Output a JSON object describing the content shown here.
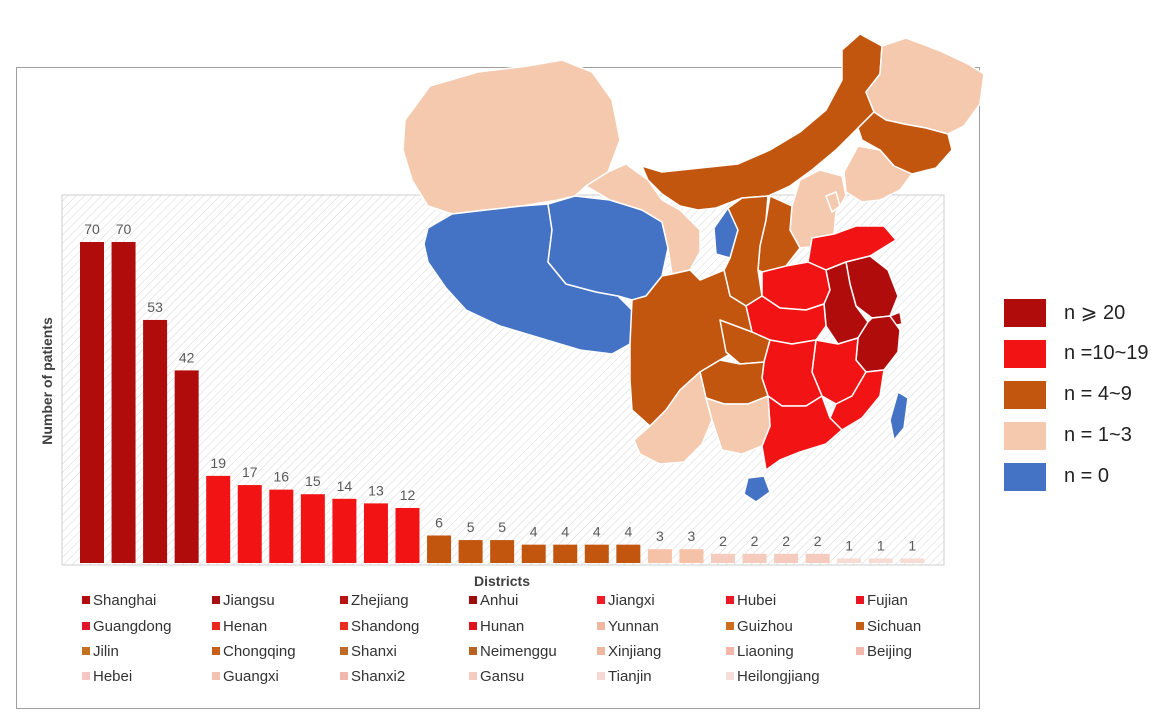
{
  "chart_data": {
    "type": "bar",
    "xlabel": "Districts",
    "ylabel": "Number of patients",
    "ylim": [
      0,
      80
    ],
    "grid": false,
    "categories": [
      "Shanghai",
      "Jiangsu",
      "Zhejiang",
      "Anhui",
      "Jiangxi",
      "Hubei",
      "Fujian",
      "Guangdong",
      "Henan",
      "Shandong",
      "Hunan",
      "Yunnan",
      "Guizhou",
      "Sichuan",
      "Jilin",
      "Chongqing",
      "Shanxi",
      "Neimenggu",
      "Xinjiang",
      "Liaoning",
      "Beijing",
      "Hebei",
      "Guangxi",
      "Shanxi2",
      "Gansu",
      "Tianjin",
      "Heilongjiang"
    ],
    "values": [
      70,
      70,
      53,
      42,
      19,
      17,
      16,
      15,
      14,
      13,
      12,
      6,
      5,
      5,
      4,
      4,
      4,
      4,
      3,
      3,
      2,
      2,
      2,
      2,
      1,
      1,
      1
    ],
    "data_labels": [
      "70",
      "70",
      "53",
      "42",
      "19",
      "17",
      "16",
      "15",
      "14",
      "13",
      "12",
      "6",
      "5",
      "5",
      "4",
      "4",
      "4",
      "4",
      "3",
      "3",
      "2",
      "2",
      "2",
      "2",
      "1",
      "1",
      "1"
    ],
    "bar_colors": [
      "#b00c0c",
      "#b00c0c",
      "#b00c0c",
      "#b00c0c",
      "#f21414",
      "#f21414",
      "#f21414",
      "#f21414",
      "#f21414",
      "#f21414",
      "#f21414",
      "#c2560f",
      "#c2560f",
      "#c2560f",
      "#c2560f",
      "#c2560f",
      "#c2560f",
      "#c2560f",
      "#f5c1a7",
      "#f5c1a7",
      "#f5cbbd",
      "#f5cbbd",
      "#f5cbbd",
      "#f5cbbd",
      "#f7dcd6",
      "#f7dcd6",
      "#f7dcd6"
    ],
    "legend_colors": [
      "#b00c0c",
      "#a90f12",
      "#b81414",
      "#9e0b0b",
      "#f01a2a",
      "#ea1a24",
      "#e81420",
      "#e0142a",
      "#e8281e",
      "#e82e1e",
      "#de141e",
      "#f0b7a0",
      "#cf6d1e",
      "#c25f14",
      "#c47222",
      "#c8601c",
      "#c06a28",
      "#b9611e",
      "#eeb79f",
      "#f4b6a8",
      "#f2b8ae",
      "#f4c7c3",
      "#f2c1b0",
      "#f1b8b0",
      "#f3cbbf",
      "#f7d9d4",
      "#f7dedb"
    ],
    "legend_placement": "bottom"
  },
  "map_legend": [
    {
      "label": "n ⩾ 20",
      "color": "#b00c0c"
    },
    {
      "label": "n =10~19",
      "color": "#f21414"
    },
    {
      "label": "n = 4~9",
      "color": "#c2560f"
    },
    {
      "label": "n = 1~3",
      "color": "#f5c9ae"
    },
    {
      "label": "n = 0",
      "color": "#4472c4"
    }
  ],
  "map_colors": {
    "high": "#b00c0c",
    "mid": "#f21414",
    "low": "#c2560f",
    "minimal": "#f5c9ae",
    "none": "#4472c4"
  }
}
